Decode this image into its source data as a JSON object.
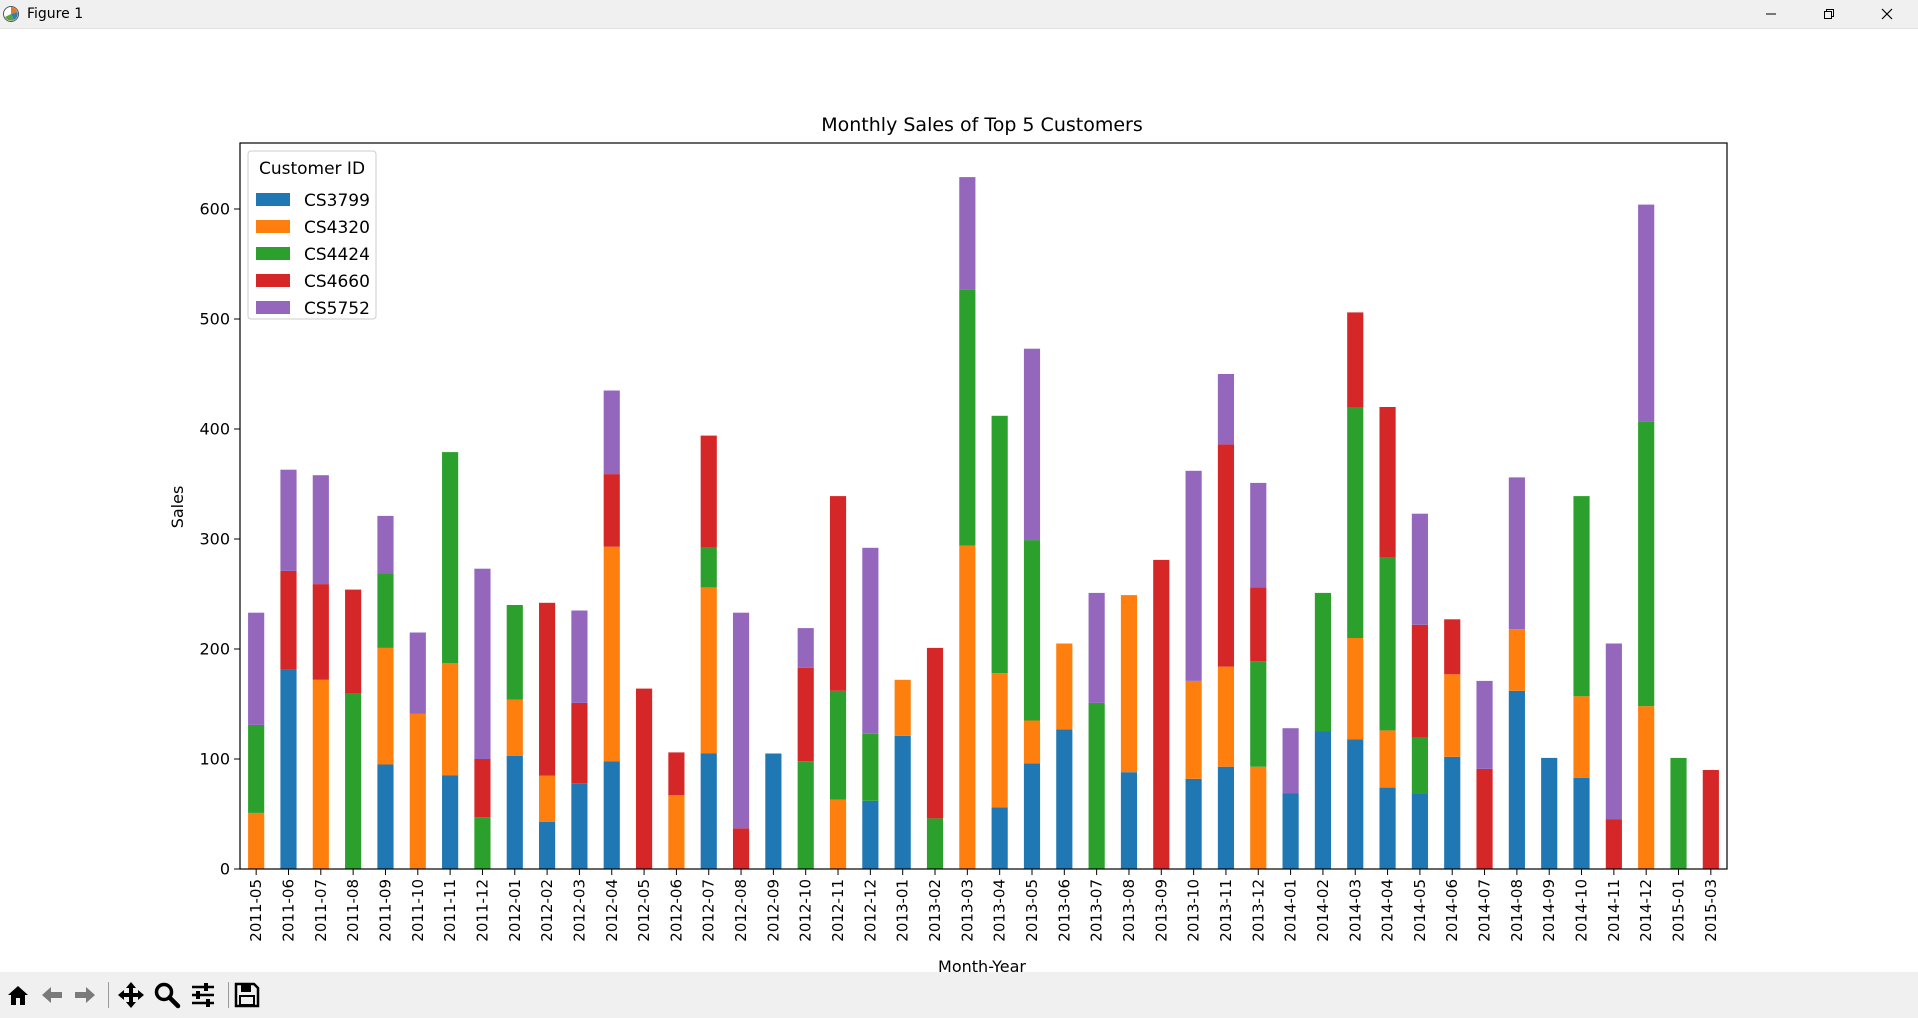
{
  "window": {
    "title": "Figure 1"
  },
  "toolbar": {
    "buttons": [
      {
        "name": "home-icon"
      },
      {
        "name": "back-icon"
      },
      {
        "name": "forward-icon"
      },
      {
        "name": "pan-icon"
      },
      {
        "name": "zoom-icon"
      },
      {
        "name": "subplots-icon"
      },
      {
        "name": "save-icon"
      }
    ]
  },
  "chart_data": {
    "type": "bar",
    "stacked": true,
    "title": "Monthly Sales of Top 5 Customers",
    "xlabel": "Month-Year",
    "ylabel": "Sales",
    "ylim": [
      0,
      660
    ],
    "yticks": [
      0,
      100,
      200,
      300,
      400,
      500,
      600
    ],
    "grid": false,
    "legend": {
      "title": "Customer ID",
      "position": "top-left"
    },
    "categories": [
      "2011-05",
      "2011-06",
      "2011-07",
      "2011-08",
      "2011-09",
      "2011-10",
      "2011-11",
      "2011-12",
      "2012-01",
      "2012-02",
      "2012-03",
      "2012-04",
      "2012-05",
      "2012-06",
      "2012-07",
      "2012-08",
      "2012-09",
      "2012-10",
      "2012-11",
      "2012-12",
      "2013-01",
      "2013-02",
      "2013-03",
      "2013-04",
      "2013-05",
      "2013-06",
      "2013-07",
      "2013-08",
      "2013-09",
      "2013-10",
      "2013-11",
      "2013-12",
      "2014-01",
      "2014-02",
      "2014-03",
      "2014-04",
      "2014-05",
      "2014-06",
      "2014-07",
      "2014-08",
      "2014-09",
      "2014-10",
      "2014-11",
      "2014-12",
      "2015-01",
      "2015-03"
    ],
    "series": [
      {
        "name": "CS3799",
        "color": "#1f77b4",
        "values": [
          0,
          181,
          0,
          0,
          95,
          0,
          85,
          0,
          103,
          43,
          78,
          98,
          0,
          0,
          105,
          0,
          105,
          0,
          0,
          62,
          121,
          0,
          0,
          56,
          96,
          127,
          0,
          88,
          0,
          82,
          93,
          0,
          69,
          125,
          118,
          74,
          69,
          102,
          0,
          162,
          101,
          83,
          0,
          0,
          0,
          0
        ]
      },
      {
        "name": "CS4320",
        "color": "#ff7f0e",
        "values": [
          51,
          0,
          172,
          0,
          106,
          141,
          102,
          0,
          51,
          42,
          0,
          195,
          0,
          67,
          151,
          0,
          0,
          0,
          63,
          0,
          51,
          0,
          294,
          122,
          39,
          78,
          0,
          161,
          0,
          89,
          91,
          93,
          0,
          0,
          92,
          52,
          0,
          75,
          0,
          56,
          0,
          74,
          0,
          148,
          0,
          0
        ]
      },
      {
        "name": "CS4424",
        "color": "#2ca02c",
        "values": [
          80,
          0,
          0,
          160,
          68,
          0,
          192,
          47,
          86,
          0,
          0,
          0,
          0,
          0,
          36,
          0,
          0,
          98,
          99,
          61,
          0,
          46,
          233,
          234,
          164,
          0,
          151,
          0,
          0,
          0,
          0,
          96,
          0,
          126,
          210,
          157,
          51,
          0,
          0,
          0,
          0,
          182,
          0,
          259,
          101,
          0
        ]
      },
      {
        "name": "CS4660",
        "color": "#d62728",
        "values": [
          0,
          90,
          87,
          94,
          0,
          0,
          0,
          53,
          0,
          157,
          73,
          66,
          164,
          39,
          102,
          37,
          0,
          85,
          177,
          0,
          0,
          155,
          0,
          0,
          0,
          0,
          0,
          0,
          281,
          0,
          202,
          67,
          0,
          0,
          86,
          137,
          102,
          50,
          91,
          0,
          0,
          0,
          45,
          0,
          0,
          90
        ]
      },
      {
        "name": "CS5752",
        "color": "#9467bd",
        "values": [
          102,
          92,
          99,
          0,
          52,
          74,
          0,
          173,
          0,
          0,
          84,
          76,
          0,
          0,
          0,
          196,
          0,
          36,
          0,
          169,
          0,
          0,
          102,
          0,
          174,
          0,
          100,
          0,
          0,
          191,
          64,
          95,
          59,
          0,
          0,
          0,
          101,
          0,
          80,
          138,
          0,
          0,
          160,
          197,
          0,
          0
        ]
      }
    ]
  }
}
